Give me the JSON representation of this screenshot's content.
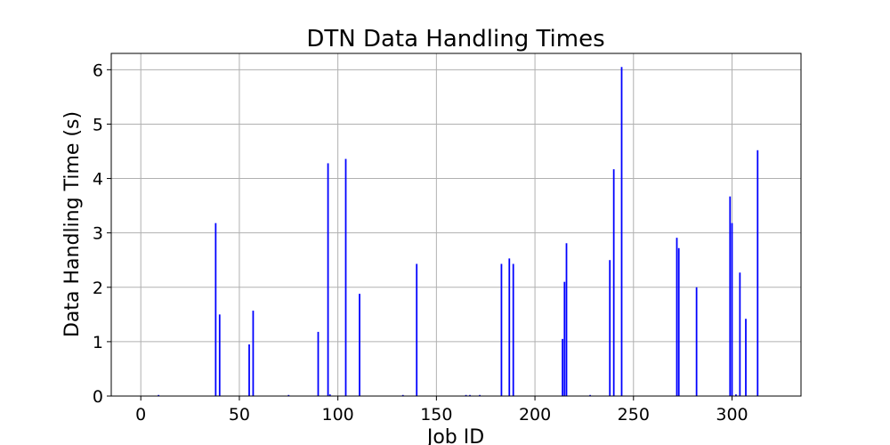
{
  "chart_data": {
    "type": "bar",
    "title": "DTN Data Handling Times",
    "xlabel": "Job ID",
    "ylabel": "Data Handling Time (s)",
    "xlim": [
      -15,
      335
    ],
    "ylim": [
      0,
      6.3
    ],
    "grid": true,
    "bar_color": "#0000ff",
    "xticks": [
      0,
      50,
      100,
      150,
      200,
      250,
      300
    ],
    "yticks": [
      0,
      1,
      2,
      3,
      4,
      5,
      6
    ],
    "x": [
      9,
      38,
      40,
      55,
      57,
      75,
      90,
      95,
      96,
      104,
      111,
      133,
      140,
      165,
      167,
      172,
      183,
      187,
      189,
      214,
      215,
      216,
      228,
      238,
      240,
      244,
      272,
      273,
      282,
      299,
      300,
      302,
      304,
      307,
      313
    ],
    "values": [
      0.02,
      3.18,
      1.5,
      0.95,
      1.57,
      0.02,
      1.18,
      4.28,
      0.03,
      4.36,
      1.88,
      0.02,
      2.43,
      0.02,
      0.02,
      0.02,
      2.43,
      2.53,
      2.43,
      1.05,
      2.1,
      2.81,
      0.02,
      2.5,
      4.17,
      6.05,
      2.91,
      2.72,
      2.0,
      3.67,
      3.18,
      0.03,
      2.27,
      1.42,
      4.52
    ]
  }
}
